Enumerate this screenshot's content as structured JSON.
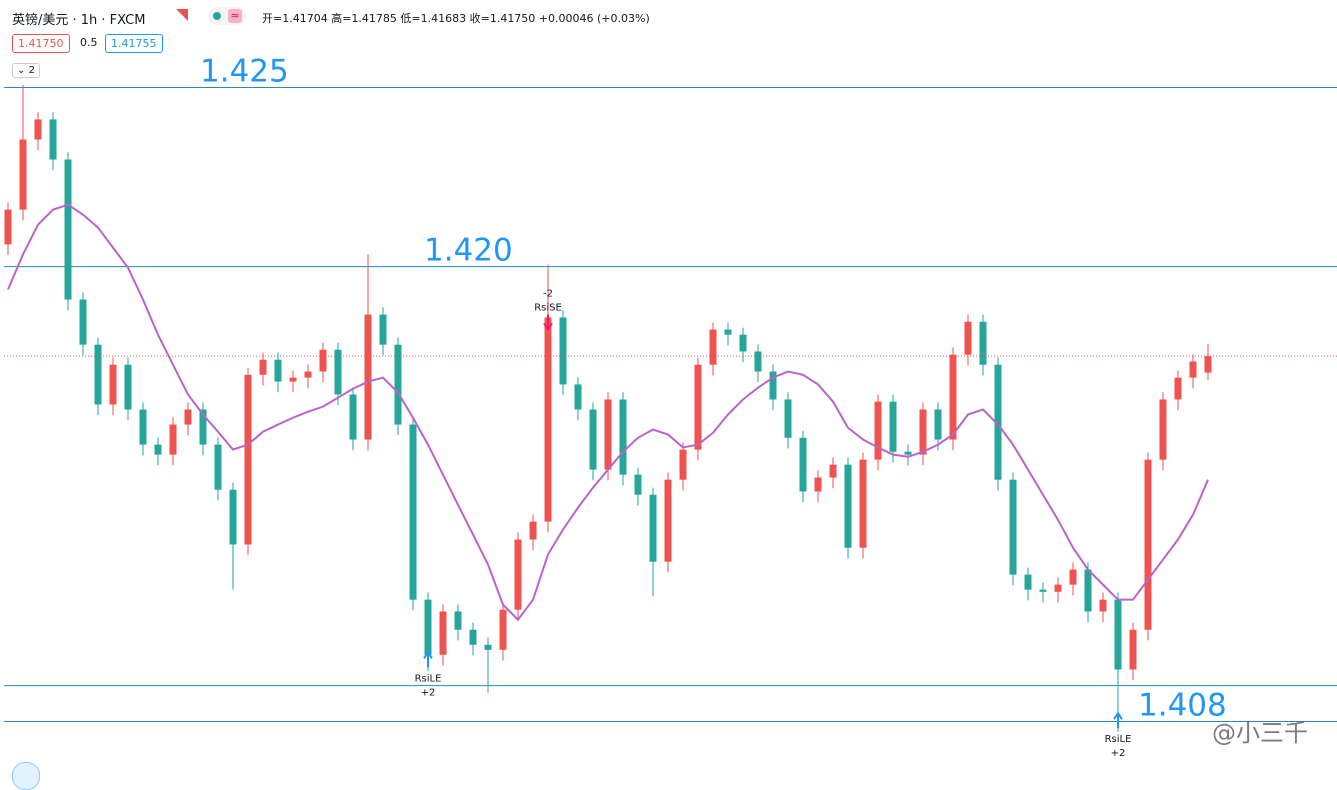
{
  "header": {
    "symbol": "英镑/美元 · 1h · FXCM",
    "ohlc": "开=1.41704 高=1.41785 低=1.41683 收=1.41750 +0.00046 (+0.03%)",
    "sell": "1.41750",
    "spread": "0.5",
    "buy": "1.41755",
    "collapse": "2"
  },
  "watermark": "@小三千",
  "chart_data": {
    "type": "candlestick",
    "up_color": "#ef5350",
    "down_color": "#26a69a",
    "ylim": [
      1.406,
      1.4275
    ],
    "open": [
      1.42062,
      1.42159,
      1.42355,
      1.42411,
      1.42299,
      1.41908,
      1.41782,
      1.41615,
      1.41726,
      1.41601,
      1.41503,
      1.41475,
      1.41559,
      1.41601,
      1.41503,
      1.41377,
      1.41224,
      1.41698,
      1.4174,
      1.41679,
      1.4169,
      1.41707,
      1.41768,
      1.41643,
      1.41517,
      1.41866,
      1.41782,
      1.41559,
      1.4107,
      1.40916,
      1.41037,
      1.40986,
      1.40944,
      1.4093,
      1.41042,
      1.41238,
      1.41288,
      1.41858,
      1.41671,
      1.41601,
      1.41433,
      1.41629,
      1.41419,
      1.41363,
      1.41176,
      1.41405,
      1.41489,
      1.41726,
      1.41824,
      1.4181,
      1.41763,
      1.41707,
      1.41629,
      1.41522,
      1.41372,
      1.41411,
      1.41447,
      1.41215,
      1.41461,
      1.41623,
      1.41483,
      1.41475,
      1.41601,
      1.41517,
      1.41754,
      1.41846,
      1.41726,
      1.41405,
      1.4114,
      1.41098,
      1.41092,
      1.41112,
      1.41154,
      1.41037,
      1.4107,
      1.40875,
      1.40986,
      1.41461,
      1.41629,
      1.4169,
      1.41704
    ],
    "high": [
      1.42179,
      1.42508,
      1.42431,
      1.42431,
      1.42319,
      1.41928,
      1.41802,
      1.41746,
      1.41746,
      1.41621,
      1.41523,
      1.41579,
      1.41621,
      1.41621,
      1.41523,
      1.41397,
      1.41718,
      1.4176,
      1.4176,
      1.4171,
      1.41727,
      1.41788,
      1.41788,
      1.41663,
      1.42034,
      1.41886,
      1.41802,
      1.41579,
      1.4109,
      1.41057,
      1.41057,
      1.41006,
      1.40964,
      1.41062,
      1.41258,
      1.41308,
      1.42006,
      1.41878,
      1.41691,
      1.41621,
      1.41649,
      1.41649,
      1.41439,
      1.41383,
      1.41425,
      1.41509,
      1.41746,
      1.41844,
      1.41844,
      1.4183,
      1.41783,
      1.41727,
      1.41649,
      1.41542,
      1.41431,
      1.41467,
      1.41467,
      1.41481,
      1.41643,
      1.41643,
      1.41503,
      1.41621,
      1.41621,
      1.41774,
      1.41866,
      1.41866,
      1.41746,
      1.41425,
      1.4116,
      1.41118,
      1.41132,
      1.41174,
      1.41174,
      1.4109,
      1.4109,
      1.41006,
      1.41481,
      1.41649,
      1.4171,
      1.41755,
      1.41785
    ],
    "low": [
      1.42032,
      1.42129,
      1.42325,
      1.42269,
      1.41878,
      1.41752,
      1.41585,
      1.41585,
      1.41571,
      1.41473,
      1.41445,
      1.41445,
      1.41529,
      1.41473,
      1.41347,
      1.41098,
      1.41194,
      1.41668,
      1.41649,
      1.41649,
      1.4166,
      1.41677,
      1.41613,
      1.41487,
      1.41487,
      1.41752,
      1.41529,
      1.4104,
      1.4087,
      1.40886,
      1.40956,
      1.40914,
      1.4081,
      1.409,
      1.41012,
      1.41208,
      1.41258,
      1.41641,
      1.41571,
      1.41403,
      1.41403,
      1.41389,
      1.41333,
      1.4108,
      1.41146,
      1.41375,
      1.41459,
      1.41696,
      1.4178,
      1.41733,
      1.41677,
      1.41599,
      1.41492,
      1.41342,
      1.41342,
      1.41381,
      1.41185,
      1.41185,
      1.41431,
      1.41453,
      1.41445,
      1.41445,
      1.41487,
      1.41487,
      1.41724,
      1.41696,
      1.41375,
      1.4111,
      1.41068,
      1.41062,
      1.41062,
      1.41082,
      1.41007,
      1.41007,
      1.407,
      1.40845,
      1.40956,
      1.41431,
      1.41599,
      1.4166,
      1.41683
    ],
    "close": [
      1.42159,
      1.42355,
      1.42411,
      1.42299,
      1.41908,
      1.41782,
      1.41615,
      1.41726,
      1.41601,
      1.41503,
      1.41475,
      1.41559,
      1.41601,
      1.41503,
      1.41377,
      1.41224,
      1.41698,
      1.4174,
      1.41679,
      1.4169,
      1.41707,
      1.41768,
      1.41643,
      1.41517,
      1.41866,
      1.41782,
      1.41559,
      1.4107,
      1.40916,
      1.41037,
      1.40986,
      1.40944,
      1.4093,
      1.41042,
      1.41238,
      1.41288,
      1.41858,
      1.41671,
      1.41601,
      1.41433,
      1.41629,
      1.41419,
      1.41363,
      1.41176,
      1.41405,
      1.41489,
      1.41726,
      1.41824,
      1.4181,
      1.41763,
      1.41707,
      1.41629,
      1.41522,
      1.41372,
      1.41411,
      1.41447,
      1.41215,
      1.41461,
      1.41623,
      1.41483,
      1.41475,
      1.41601,
      1.41517,
      1.41754,
      1.41846,
      1.41726,
      1.41405,
      1.4114,
      1.41098,
      1.41092,
      1.41112,
      1.41154,
      1.41037,
      1.4107,
      1.40875,
      1.40986,
      1.41461,
      1.41629,
      1.4169,
      1.41735,
      1.4175
    ],
    "ma": {
      "color": "#b964c8",
      "values": [
        1.41936,
        1.42034,
        1.42117,
        1.42159,
        1.42173,
        1.42145,
        1.42109,
        1.42053,
        1.41997,
        1.41908,
        1.4181,
        1.41726,
        1.41643,
        1.41587,
        1.41539,
        1.41489,
        1.41503,
        1.41539,
        1.41559,
        1.41578,
        1.41595,
        1.41609,
        1.41634,
        1.41659,
        1.41679,
        1.4169,
        1.41648,
        1.41578,
        1.41503,
        1.41419,
        1.41335,
        1.41252,
        1.41168,
        1.41056,
        1.41014,
        1.4107,
        1.41196,
        1.41266,
        1.41327,
        1.41383,
        1.41433,
        1.41483,
        1.41522,
        1.41545,
        1.41531,
        1.41495,
        1.41503,
        1.41536,
        1.41587,
        1.41629,
        1.41662,
        1.4169,
        1.41707,
        1.41698,
        1.41671,
        1.41623,
        1.4155,
        1.41517,
        1.41495,
        1.41475,
        1.41469,
        1.41483,
        1.41503,
        1.41531,
        1.41587,
        1.41601,
        1.41559,
        1.41503,
        1.41433,
        1.41363,
        1.41293,
        1.41215,
        1.41154,
        1.41112,
        1.4107,
        1.4107,
        1.41126,
        1.41182,
        1.41238,
        1.41307,
        1.41405
      ]
    },
    "level_color": "#2a8ab8",
    "levels": [
      1.425,
      1.42,
      1.4083,
      1.4073
    ],
    "level_labels": [
      "1.425",
      "1.420",
      "1.408"
    ],
    "signals": [
      {
        "label": "RsiSE",
        "qty": "-2"
      },
      {
        "label": "RsiLE",
        "qty": "+2"
      },
      {
        "label": "RsiLE",
        "qty": "+2"
      }
    ]
  }
}
